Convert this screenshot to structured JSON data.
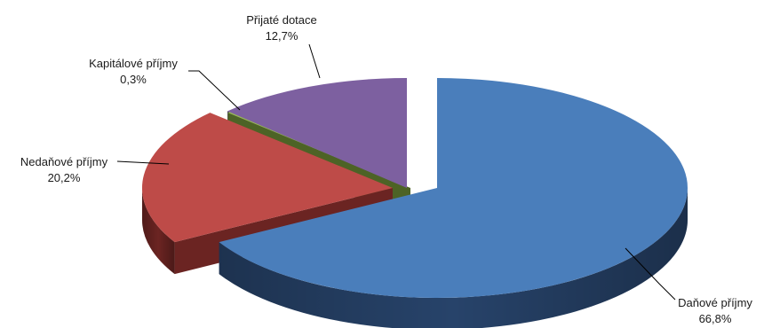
{
  "chart_data": {
    "type": "pie",
    "title": "",
    "legend": "none",
    "slices": [
      {
        "name": "Daňové příjmy",
        "value": 66.8,
        "label": "66,8%",
        "color": "#4a7ebb",
        "side": "#27436a"
      },
      {
        "name": "Nedaňové příjmy",
        "value": 20.2,
        "label": "20,2%",
        "color": "#be4b48",
        "side": "#6b2422"
      },
      {
        "name": "Kapitálové příjmy",
        "value": 0.3,
        "label": "0,3%",
        "color": "#98b954",
        "side": "#4d6326"
      },
      {
        "name": "Přijaté dotace",
        "value": 12.7,
        "label": "12,7%",
        "color": "#7d60a0",
        "side": "#3e2e55"
      }
    ]
  }
}
